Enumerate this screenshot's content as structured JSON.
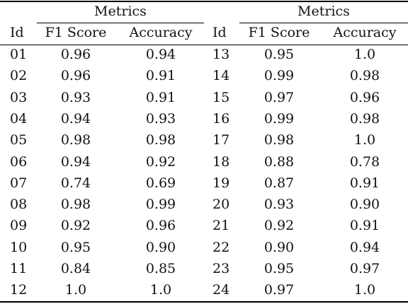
{
  "table": {
    "group_header_left": "Metrics",
    "group_header_right": "Metrics",
    "columns": [
      "Id",
      "F1 Score",
      "Accuracy",
      "Id",
      "F1 Score",
      "Accuracy"
    ],
    "rows": [
      [
        "01",
        "0.96",
        "0.94",
        "13",
        "0.95",
        "1.0"
      ],
      [
        "02",
        "0.96",
        "0.91",
        "14",
        "0.99",
        "0.98"
      ],
      [
        "03",
        "0.93",
        "0.91",
        "15",
        "0.97",
        "0.96"
      ],
      [
        "04",
        "0.94",
        "0.93",
        "16",
        "0.99",
        "0.98"
      ],
      [
        "05",
        "0.98",
        "0.98",
        "17",
        "0.98",
        "1.0"
      ],
      [
        "06",
        "0.94",
        "0.92",
        "18",
        "0.88",
        "0.78"
      ],
      [
        "07",
        "0.74",
        "0.69",
        "19",
        "0.87",
        "0.91"
      ],
      [
        "08",
        "0.98",
        "0.99",
        "20",
        "0.93",
        "0.90"
      ],
      [
        "09",
        "0.92",
        "0.96",
        "21",
        "0.92",
        "0.91"
      ],
      [
        "10",
        "0.95",
        "0.90",
        "22",
        "0.90",
        "0.94"
      ],
      [
        "11",
        "0.84",
        "0.85",
        "23",
        "0.95",
        "0.97"
      ],
      [
        "12",
        "1.0",
        "1.0",
        "24",
        "0.97",
        "1.0"
      ]
    ]
  }
}
